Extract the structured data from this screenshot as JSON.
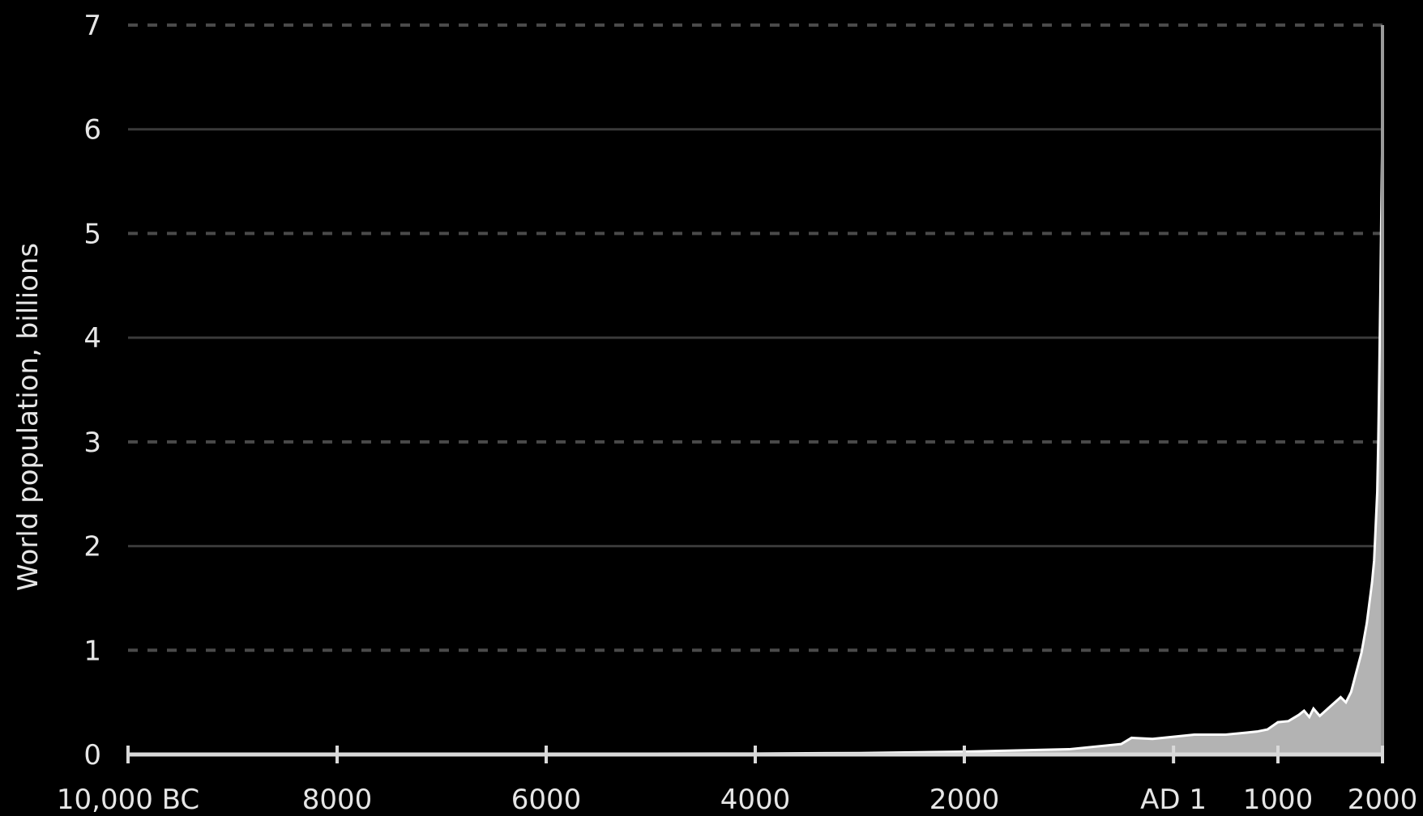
{
  "chart_data": {
    "type": "area",
    "title": "",
    "xlabel": "",
    "ylabel": "World population, billions",
    "xlim": [
      -10000,
      2000
    ],
    "ylim": [
      0,
      7
    ],
    "grid": true,
    "colors": {
      "background": "#000000",
      "fill": "#b3b3b3",
      "line": "#ffffff",
      "text": "#e6e6e6",
      "grid": "#3a3a3a"
    },
    "x_ticks": [
      {
        "value": -10000,
        "label": "10,000 BC"
      },
      {
        "value": -8000,
        "label": "8000"
      },
      {
        "value": -6000,
        "label": "6000"
      },
      {
        "value": -4000,
        "label": "4000"
      },
      {
        "value": -2000,
        "label": "2000"
      },
      {
        "value": 1,
        "label": "AD 1"
      },
      {
        "value": 1000,
        "label": "1000"
      },
      {
        "value": 2000,
        "label": "2000"
      }
    ],
    "y_ticks": [
      {
        "value": 0,
        "label": "0"
      },
      {
        "value": 1,
        "label": "1"
      },
      {
        "value": 2,
        "label": "2"
      },
      {
        "value": 3,
        "label": "3"
      },
      {
        "value": 4,
        "label": "4"
      },
      {
        "value": 5,
        "label": "5"
      },
      {
        "value": 6,
        "label": "6"
      },
      {
        "value": 7,
        "label": "7"
      }
    ],
    "series": [
      {
        "x": [
          -10000,
          -8000,
          -6500,
          -5000,
          -4000,
          -3000,
          -2000,
          -1000,
          -500,
          -400,
          -200,
          1,
          200,
          400,
          500,
          600,
          700,
          800,
          900,
          1000,
          1100,
          1200,
          1250,
          1300,
          1340,
          1400,
          1500,
          1600,
          1650,
          1700,
          1750,
          1800,
          1850,
          1900,
          1920,
          1940,
          1950,
          1960,
          1970,
          1980,
          1990,
          2000,
          2005,
          2010
        ],
        "values": [
          0.004,
          0.005,
          0.006,
          0.008,
          0.009,
          0.014,
          0.027,
          0.05,
          0.1,
          0.16,
          0.15,
          0.17,
          0.19,
          0.19,
          0.19,
          0.2,
          0.21,
          0.22,
          0.24,
          0.31,
          0.32,
          0.38,
          0.42,
          0.36,
          0.44,
          0.37,
          0.46,
          0.55,
          0.5,
          0.6,
          0.79,
          0.98,
          1.26,
          1.65,
          1.86,
          2.3,
          2.52,
          3.02,
          3.7,
          4.44,
          5.28,
          6.07,
          6.45,
          6.9
        ]
      }
    ]
  }
}
